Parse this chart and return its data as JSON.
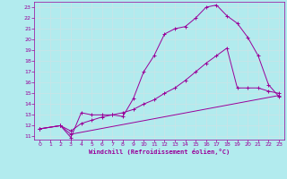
{
  "bg_color": "#b2ebee",
  "line_color": "#990099",
  "grid_color": "#d0e8ea",
  "xlabel": "Windchill (Refroidissement éolien,°C)",
  "xlim": [
    -0.5,
    23.5
  ],
  "ylim": [
    10.7,
    23.5
  ],
  "xticks": [
    0,
    1,
    2,
    3,
    4,
    5,
    6,
    7,
    8,
    9,
    10,
    11,
    12,
    13,
    14,
    15,
    16,
    17,
    18,
    19,
    20,
    21,
    22,
    23
  ],
  "yticks": [
    11,
    12,
    13,
    14,
    15,
    16,
    17,
    18,
    19,
    20,
    21,
    22,
    23
  ],
  "line1_x": [
    0,
    2,
    3,
    4,
    5,
    6,
    7,
    8,
    9,
    10,
    11,
    12,
    13,
    14,
    15,
    16,
    17,
    18,
    19,
    20,
    21,
    22,
    23
  ],
  "line1_y": [
    11.7,
    12.0,
    10.9,
    13.2,
    13.0,
    13.0,
    13.0,
    12.85,
    14.5,
    17.0,
    18.5,
    20.5,
    21.0,
    21.2,
    22.0,
    23.0,
    23.2,
    22.2,
    21.5,
    20.2,
    18.5,
    15.8,
    14.7
  ],
  "line2_x": [
    0,
    2,
    3,
    4,
    5,
    6,
    7,
    8,
    9,
    10,
    11,
    12,
    13,
    14,
    15,
    16,
    17,
    18,
    19,
    20,
    21,
    22,
    23
  ],
  "line2_y": [
    11.7,
    12.0,
    11.5,
    12.2,
    12.5,
    12.8,
    13.0,
    13.2,
    13.5,
    14.0,
    14.4,
    15.0,
    15.5,
    16.2,
    17.0,
    17.8,
    18.5,
    19.2,
    15.5,
    15.5,
    15.5,
    15.2,
    15.0
  ],
  "line3_x": [
    0,
    2,
    3,
    23
  ],
  "line3_y": [
    11.7,
    12.0,
    11.2,
    14.8
  ]
}
